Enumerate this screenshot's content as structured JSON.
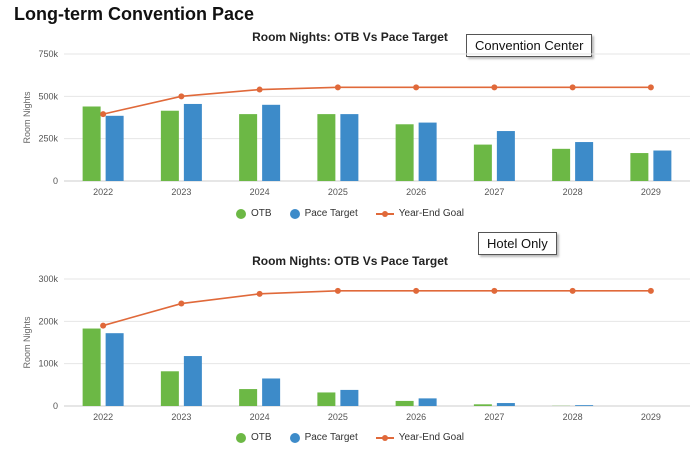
{
  "page": {
    "title": "Long-term Convention Pace"
  },
  "colors": {
    "otb": "#6cb845",
    "pace": "#3d8bc9",
    "goal": "#e0693a",
    "grid": "#e6e6e6",
    "axis": "#cccccc"
  },
  "chart_data": [
    {
      "type": "bar",
      "title": "Room Nights: OTB Vs Pace Target",
      "annotation": "Convention Center",
      "ylabel": "Room Nights",
      "categories": [
        "2022",
        "2023",
        "2024",
        "2025",
        "2026",
        "2027",
        "2028",
        "2029"
      ],
      "ylim": [
        0,
        750000
      ],
      "yticks": [
        0,
        250000,
        500000,
        750000
      ],
      "ytick_labels": [
        "0",
        "250k",
        "500k",
        "750k"
      ],
      "grid": true,
      "legend_position": "bottom",
      "series": [
        {
          "name": "OTB",
          "type": "bar",
          "values": [
            440000,
            415000,
            395000,
            395000,
            335000,
            215000,
            190000,
            165000
          ]
        },
        {
          "name": "Pace Target",
          "type": "bar",
          "values": [
            385000,
            455000,
            450000,
            395000,
            345000,
            295000,
            230000,
            180000
          ]
        },
        {
          "name": "Year-End Goal",
          "type": "line",
          "values": [
            395000,
            500000,
            540000,
            553000,
            553000,
            553000,
            553000,
            553000
          ]
        }
      ]
    },
    {
      "type": "bar",
      "title": "Room Nights: OTB Vs Pace Target",
      "annotation": "Hotel Only",
      "ylabel": "Room Nights",
      "categories": [
        "2022",
        "2023",
        "2024",
        "2025",
        "2026",
        "2027",
        "2028",
        "2029"
      ],
      "ylim": [
        0,
        300000
      ],
      "yticks": [
        0,
        100000,
        200000,
        300000
      ],
      "ytick_labels": [
        "0",
        "100k",
        "200k",
        "300k"
      ],
      "grid": true,
      "legend_position": "bottom",
      "series": [
        {
          "name": "OTB",
          "type": "bar",
          "values": [
            183000,
            82000,
            40000,
            32000,
            12000,
            4000,
            500,
            0
          ]
        },
        {
          "name": "Pace Target",
          "type": "bar",
          "values": [
            172000,
            118000,
            65000,
            38000,
            18000,
            7000,
            2000,
            0
          ]
        },
        {
          "name": "Year-End Goal",
          "type": "line",
          "values": [
            190000,
            242000,
            265000,
            272000,
            272000,
            272000,
            272000,
            272000
          ]
        }
      ]
    }
  ]
}
